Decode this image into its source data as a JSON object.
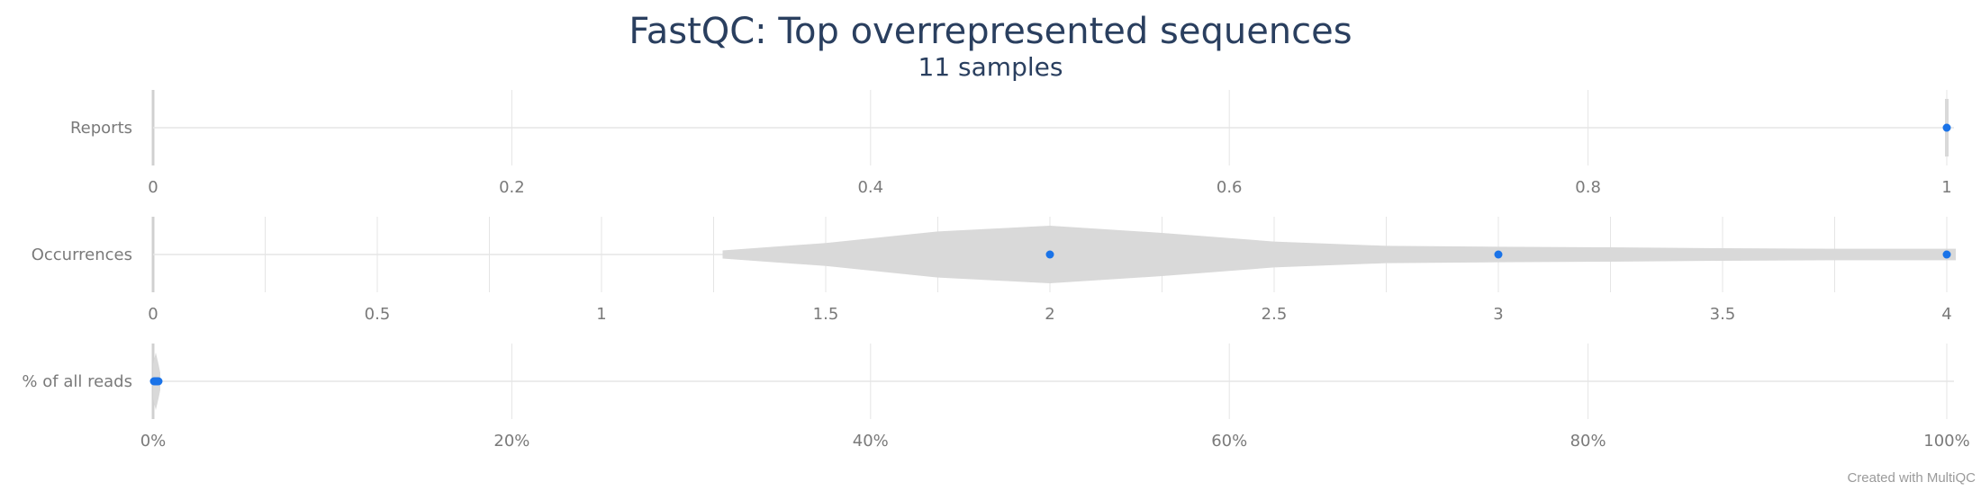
{
  "chart_data": {
    "type": "violin",
    "title": "FastQC: Top overrepresented sequences",
    "subtitle": "11 samples",
    "credit": "Created with MultiQC",
    "rows": [
      {
        "name": "Reports",
        "range": [
          0,
          1
        ],
        "ticks": [
          0,
          0.2,
          0.4,
          0.6,
          0.8,
          1
        ],
        "tick_labels": [
          "0",
          "0.2",
          "0.4",
          "0.6",
          "0.8",
          "1"
        ],
        "points": [
          1
        ],
        "violin": [
          [
            0.999,
            0.9
          ],
          [
            1.0,
            1.0
          ],
          [
            1.001,
            0.9
          ]
        ]
      },
      {
        "name": "Occurrences",
        "range": [
          0,
          4
        ],
        "ticks": [
          0,
          0.5,
          1,
          1.5,
          2,
          2.5,
          3,
          3.5,
          4
        ],
        "tick_labels": [
          "0",
          "0.5",
          "1",
          "1.5",
          "2",
          "2.5",
          "3",
          "3.5",
          "4"
        ],
        "minor_ticks": [
          0.25,
          0.75,
          1.25,
          1.75,
          2.25,
          2.75,
          3.25,
          3.75
        ],
        "points": [
          2,
          3,
          4
        ],
        "violin": [
          [
            1.27,
            0.14
          ],
          [
            1.5,
            0.4
          ],
          [
            1.75,
            0.8
          ],
          [
            2.0,
            1.0
          ],
          [
            2.25,
            0.75
          ],
          [
            2.5,
            0.45
          ],
          [
            2.75,
            0.3
          ],
          [
            3.0,
            0.27
          ],
          [
            3.25,
            0.25
          ],
          [
            3.5,
            0.22
          ],
          [
            3.75,
            0.2
          ],
          [
            4.0,
            0.2
          ],
          [
            4.02,
            0.2
          ]
        ]
      },
      {
        "name": "% of all reads",
        "range": [
          0,
          100
        ],
        "ticks": [
          0,
          20,
          40,
          60,
          80,
          100
        ],
        "tick_labels": [
          "0%",
          "20%",
          "40%",
          "60%",
          "80%",
          "100%"
        ],
        "points": [
          0.05,
          0.1,
          0.15,
          0.2,
          0.25,
          0.3
        ],
        "violin": [
          [
            0.0,
            0.6
          ],
          [
            0.15,
            1.0
          ],
          [
            0.3,
            0.6
          ],
          [
            0.4,
            0.3
          ]
        ]
      }
    ],
    "colors": {
      "point": "#1a73e8",
      "violin": "#d9d9d9",
      "grid": "#e5e5e5",
      "axis": "#d0d0d0"
    }
  }
}
